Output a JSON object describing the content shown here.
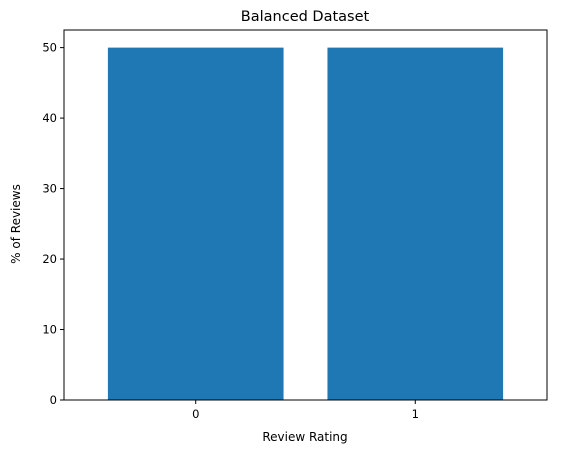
{
  "chart_data": {
    "type": "bar",
    "title": "Balanced Dataset",
    "xlabel": "Review Rating",
    "ylabel": "% of Reviews",
    "categories": [
      "0",
      "1"
    ],
    "values": [
      50,
      50
    ],
    "ylim": [
      0,
      52.5
    ],
    "yticks": [
      0,
      10,
      20,
      30,
      40,
      50
    ],
    "grid": false,
    "bar_color": "#1f77b4"
  }
}
